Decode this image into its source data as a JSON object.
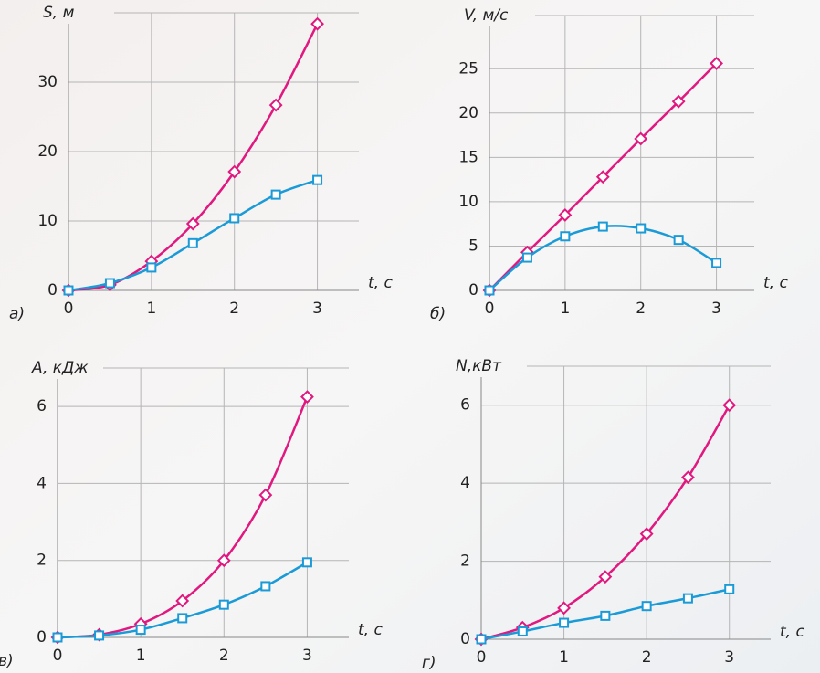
{
  "chart_data": [
    {
      "type": "line",
      "panel_label": "а)",
      "y_label": "S, м",
      "x_label": "t, с",
      "x": [
        0,
        0.5,
        1,
        1.5,
        2,
        2.5,
        3
      ],
      "xlim": [
        0,
        3.5
      ],
      "xticks": [
        0,
        1,
        2,
        3
      ],
      "ylim": [
        0,
        40
      ],
      "yticks": [
        0,
        10,
        20,
        30
      ],
      "grid": true,
      "series": [
        {
          "color": "#e0187f",
          "marker": "diamond",
          "values": [
            0,
            0.8,
            4.2,
            9.6,
            17.1,
            26.7,
            38.4
          ]
        },
        {
          "color": "#1a9ad6",
          "marker": "square",
          "values": [
            0,
            1.05,
            3.3,
            6.8,
            10.4,
            13.8,
            15.9
          ]
        }
      ]
    },
    {
      "type": "line",
      "panel_label": "б)",
      "y_label": "V, м/с",
      "x_label": "t, с",
      "x": [
        0,
        0.5,
        1,
        1.5,
        2,
        2.5,
        3
      ],
      "xlim": [
        0,
        3.5
      ],
      "xticks": [
        0,
        1,
        2,
        3
      ],
      "ylim": [
        0,
        31
      ],
      "yticks": [
        0,
        5,
        10,
        15,
        20,
        25
      ],
      "grid": true,
      "series": [
        {
          "color": "#e0187f",
          "marker": "diamond",
          "values": [
            0,
            4.3,
            8.5,
            12.8,
            17.1,
            21.3,
            25.6
          ]
        },
        {
          "color": "#1a9ad6",
          "marker": "square",
          "values": [
            0,
            3.7,
            6.1,
            7.2,
            7.0,
            5.7,
            3.1
          ]
        }
      ]
    },
    {
      "type": "line",
      "panel_label": "в)",
      "y_label": "A, кДж",
      "x_label": "t, с",
      "x": [
        0,
        0.5,
        1,
        1.5,
        2,
        2.5,
        3
      ],
      "xlim": [
        0,
        3.5
      ],
      "xticks": [
        0,
        1,
        2,
        3
      ],
      "ylim": [
        0,
        7
      ],
      "yticks": [
        0,
        2,
        4,
        6
      ],
      "grid": true,
      "series": [
        {
          "color": "#e0187f",
          "marker": "diamond",
          "values": [
            0,
            0.07,
            0.35,
            0.95,
            2.0,
            3.7,
            6.25
          ]
        },
        {
          "color": "#1a9ad6",
          "marker": "square",
          "values": [
            0,
            0.05,
            0.2,
            0.5,
            0.85,
            1.33,
            1.95
          ]
        }
      ]
    },
    {
      "type": "line",
      "panel_label": "г)",
      "y_label": "N,кВт",
      "x_label": "t, с",
      "x": [
        0,
        0.5,
        1,
        1.5,
        2,
        2.5,
        3
      ],
      "xlim": [
        0,
        3.5
      ],
      "xticks": [
        0,
        1,
        2,
        3
      ],
      "ylim": [
        0,
        7
      ],
      "yticks": [
        0,
        2,
        4,
        6
      ],
      "grid": true,
      "series": [
        {
          "color": "#e0187f",
          "marker": "diamond",
          "values": [
            0,
            0.3,
            0.8,
            1.6,
            2.7,
            4.15,
            6.0
          ]
        },
        {
          "color": "#1a9ad6",
          "marker": "square",
          "values": [
            0,
            0.2,
            0.42,
            0.6,
            0.85,
            1.05,
            1.28
          ]
        }
      ]
    }
  ]
}
